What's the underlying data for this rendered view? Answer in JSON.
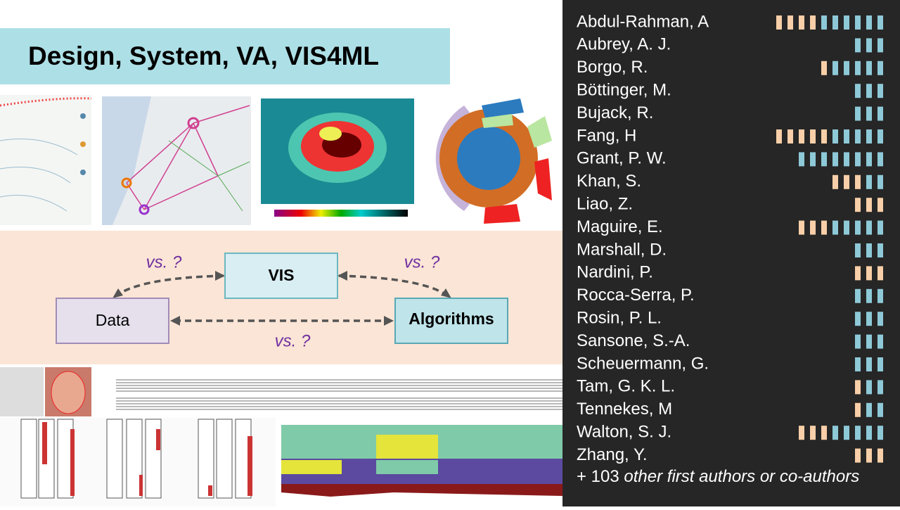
{
  "title": "Design, System, VA, VIS4ML",
  "diagram": {
    "nodes": [
      "VIS",
      "Data",
      "Algorithms"
    ],
    "edge_labels": [
      "vs. ?",
      "vs. ?",
      "vs. ?"
    ]
  },
  "authors": [
    {
      "name": "Abdul-Rahman, A",
      "tan": 4,
      "blue": 6
    },
    {
      "name": "Aubrey, A. J.",
      "tan": 0,
      "blue": 3
    },
    {
      "name": "Borgo, R.",
      "tan": 1,
      "blue": 5
    },
    {
      "name": "Böttinger, M.",
      "tan": 0,
      "blue": 3
    },
    {
      "name": "Bujack, R.",
      "tan": 0,
      "blue": 3
    },
    {
      "name": "Fang, H",
      "tan": 5,
      "blue": 5
    },
    {
      "name": "Grant, P. W.",
      "tan": 0,
      "blue": 8
    },
    {
      "name": "Khan, S.",
      "tan": 3,
      "blue": 2
    },
    {
      "name": "Liao, Z.",
      "tan": 3,
      "blue": 0
    },
    {
      "name": "Maguire, E.",
      "tan": 3,
      "blue": 5
    },
    {
      "name": "Marshall, D.",
      "tan": 0,
      "blue": 3
    },
    {
      "name": "Nardini, P.",
      "tan": 3,
      "blue": 0
    },
    {
      "name": "Rocca-Serra, P.",
      "tan": 0,
      "blue": 3
    },
    {
      "name": "Rosin, P. L.",
      "tan": 0,
      "blue": 3
    },
    {
      "name": "Sansone, S.-A.",
      "tan": 0,
      "blue": 3
    },
    {
      "name": "Scheuermann, G.",
      "tan": 0,
      "blue": 3
    },
    {
      "name": "Tam, G. K. L.",
      "tan": 1,
      "blue": 2
    },
    {
      "name": "Tennekes, M",
      "tan": 1,
      "blue": 2
    },
    {
      "name": "Walton, S. J.",
      "tan": 3,
      "blue": 5
    },
    {
      "name": "Zhang, Y.",
      "tan": 3,
      "blue": 0
    }
  ],
  "footer": {
    "count": "+ 103",
    "text": "other first authors or co-authors"
  }
}
